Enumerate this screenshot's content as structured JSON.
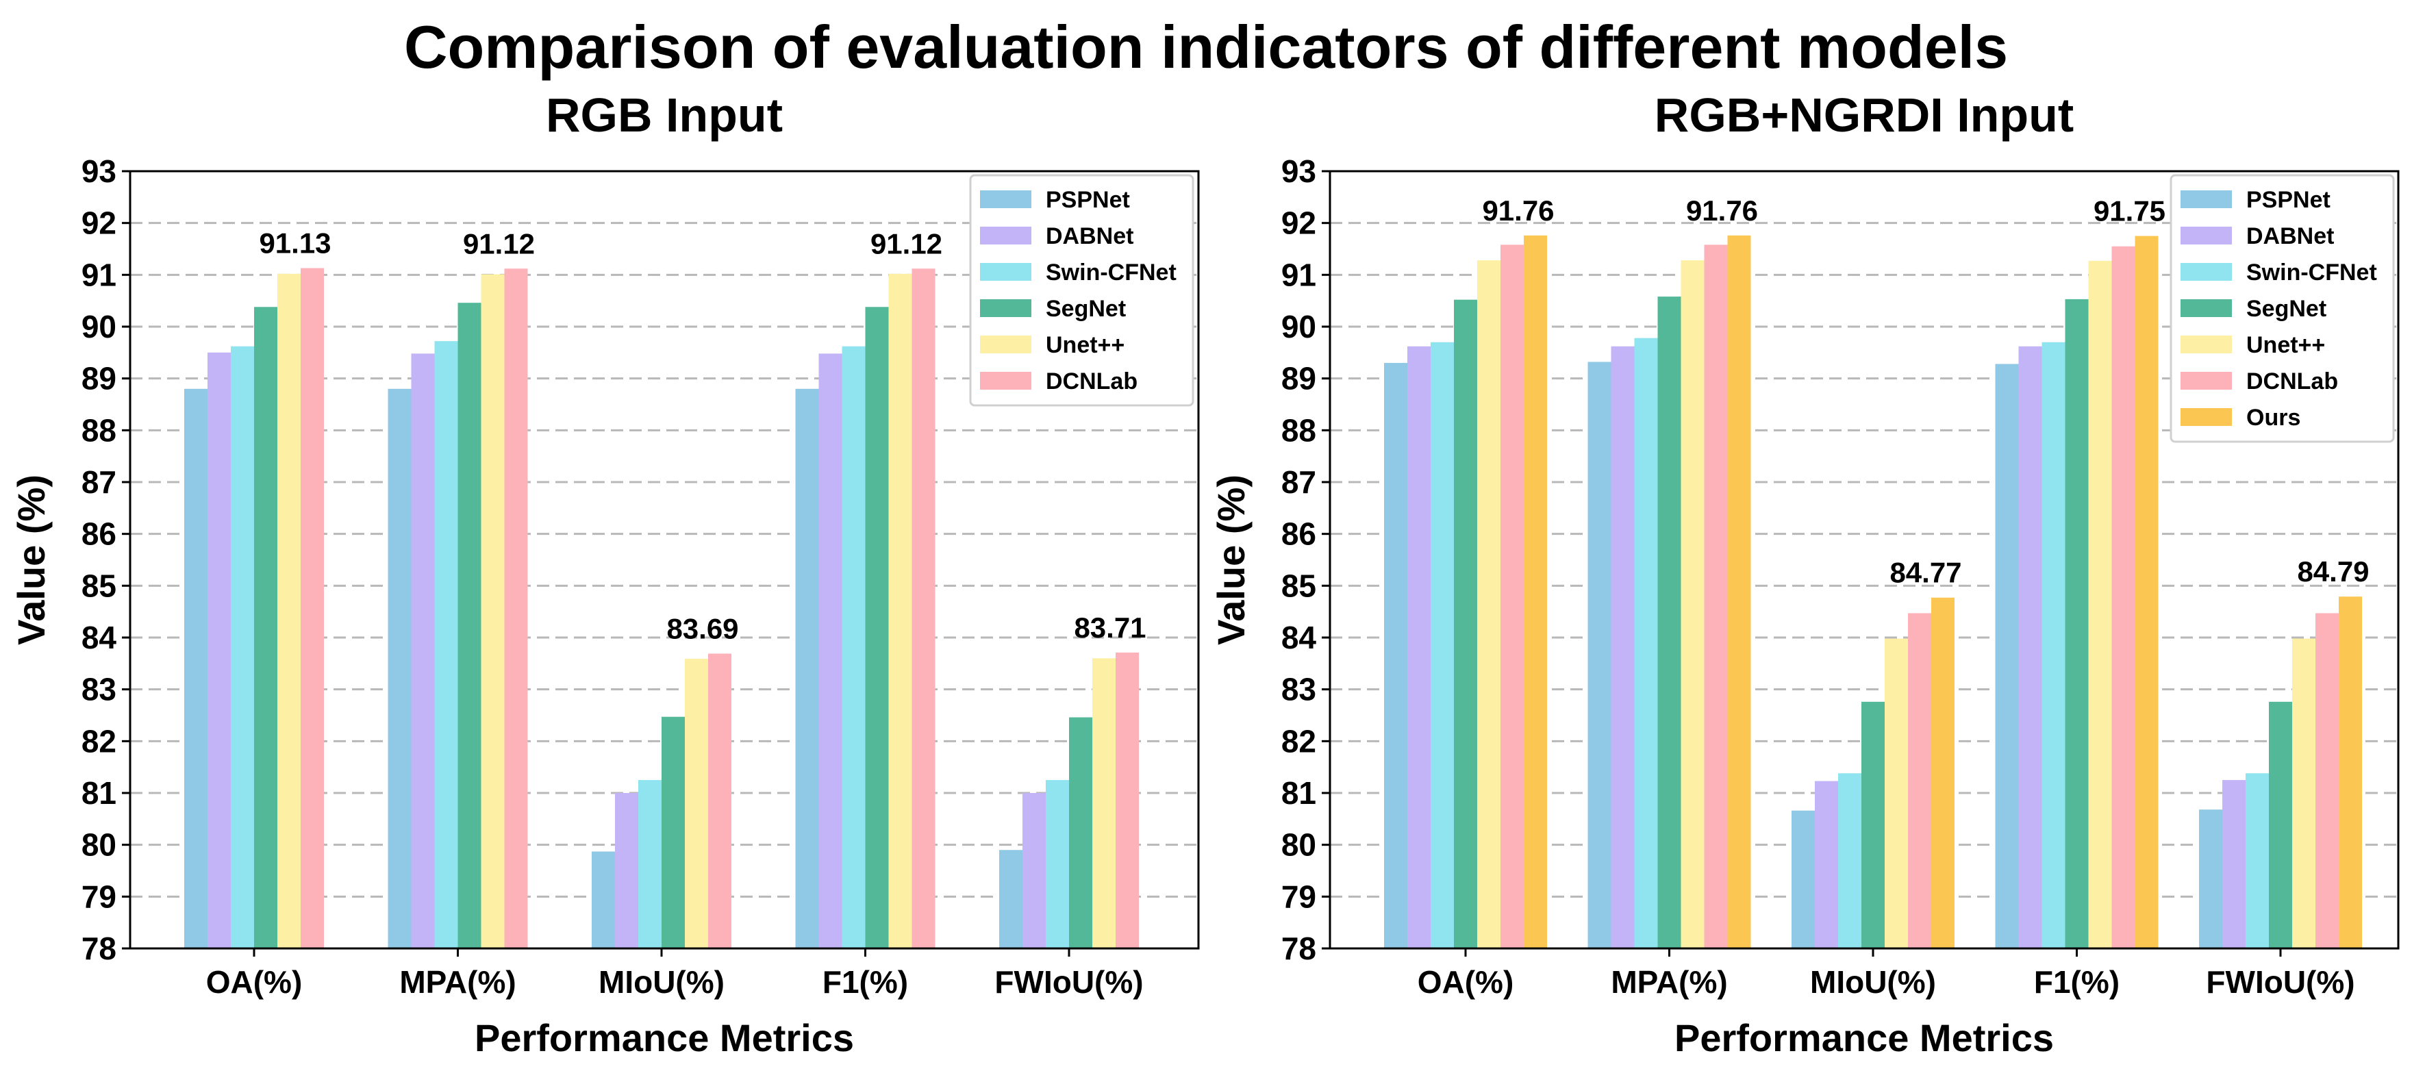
{
  "title": "Comparison of evaluation indicators of different models",
  "colors": {
    "PSPNet": "#8fc9e6",
    "DABNet": "#c3b4f7",
    "Swin-CFNet": "#8fe4f0",
    "SegNet": "#52b897",
    "Unet++": "#fdf0a4",
    "DCNLab": "#fdb2ba",
    "Ours": "#fcc653"
  },
  "chart_data": [
    {
      "type": "bar",
      "title": "RGB Input",
      "xlabel": "Performance Metrics",
      "ylabel": "Value (%)",
      "ylim": [
        78,
        93
      ],
      "yticks": [
        78,
        79,
        80,
        81,
        82,
        83,
        84,
        85,
        86,
        87,
        88,
        89,
        90,
        91,
        92,
        93
      ],
      "grid": "y-dashed",
      "legend": "top-right",
      "categories": [
        "OA(%)",
        "MPA(%)",
        "MIoU(%)",
        "F1(%)",
        "FWIoU(%)"
      ],
      "series": [
        {
          "name": "PSPNet",
          "values": [
            88.8,
            88.8,
            79.87,
            88.8,
            79.9
          ]
        },
        {
          "name": "DABNet",
          "values": [
            89.5,
            89.48,
            81.0,
            89.48,
            81.0
          ]
        },
        {
          "name": "Swin-CFNet",
          "values": [
            89.62,
            89.72,
            81.25,
            89.62,
            81.25
          ]
        },
        {
          "name": "SegNet",
          "values": [
            90.38,
            90.46,
            82.47,
            90.38,
            82.46
          ]
        },
        {
          "name": "Unet++",
          "values": [
            91.02,
            91.01,
            83.59,
            91.02,
            83.6
          ]
        },
        {
          "name": "DCNLab",
          "values": [
            91.13,
            91.12,
            83.69,
            91.12,
            83.71
          ]
        }
      ],
      "annotations": [
        "91.13",
        "91.12",
        "83.69",
        "91.12",
        "83.71"
      ]
    },
    {
      "type": "bar",
      "title": "RGB+NGRDI Input",
      "xlabel": "Performance Metrics",
      "ylabel": "Value (%)",
      "ylim": [
        78,
        93
      ],
      "yticks": [
        78,
        79,
        80,
        81,
        82,
        83,
        84,
        85,
        86,
        87,
        88,
        89,
        90,
        91,
        92,
        93
      ],
      "grid": "y-dashed",
      "legend": "top-right",
      "categories": [
        "OA(%)",
        "MPA(%)",
        "MIoU(%)",
        "F1(%)",
        "FWIoU(%)"
      ],
      "series": [
        {
          "name": "PSPNet",
          "values": [
            89.3,
            89.32,
            80.66,
            89.28,
            80.68
          ]
        },
        {
          "name": "DABNet",
          "values": [
            89.62,
            89.62,
            81.23,
            89.62,
            81.25
          ]
        },
        {
          "name": "Swin-CFNet",
          "values": [
            89.7,
            89.78,
            81.38,
            89.7,
            81.38
          ]
        },
        {
          "name": "SegNet",
          "values": [
            90.52,
            90.58,
            82.76,
            90.53,
            82.76
          ]
        },
        {
          "name": "Unet++",
          "values": [
            91.28,
            91.28,
            83.98,
            91.27,
            83.98
          ]
        },
        {
          "name": "DCNLab",
          "values": [
            91.58,
            91.58,
            84.47,
            91.55,
            84.47
          ]
        },
        {
          "name": "Ours",
          "values": [
            91.76,
            91.76,
            84.77,
            91.75,
            84.79
          ]
        }
      ],
      "annotations": [
        "91.76",
        "91.76",
        "84.77",
        "91.75",
        "84.79"
      ]
    }
  ]
}
